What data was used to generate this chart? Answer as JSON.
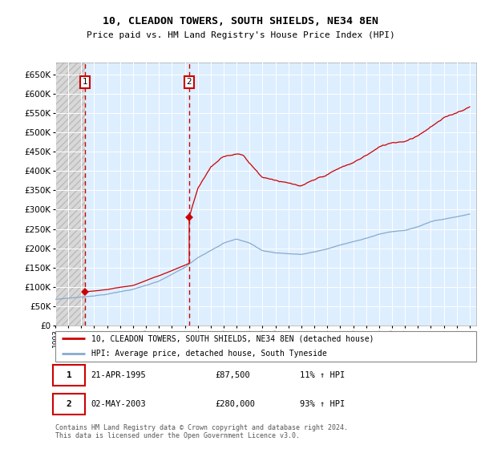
{
  "title": "10, CLEADON TOWERS, SOUTH SHIELDS, NE34 8EN",
  "subtitle": "Price paid vs. HM Land Registry's House Price Index (HPI)",
  "ytick_values": [
    0,
    50000,
    100000,
    150000,
    200000,
    250000,
    300000,
    350000,
    400000,
    450000,
    500000,
    550000,
    600000,
    650000
  ],
  "ylim": [
    0,
    680000
  ],
  "xlim_start": 1993.0,
  "xlim_end": 2025.5,
  "purchase1_x": 1995.31,
  "purchase1_y": 87500,
  "purchase2_x": 2003.34,
  "purchase2_y": 280000,
  "line_color_property": "#cc0000",
  "line_color_hpi": "#88aacc",
  "legend_label_property": "10, CLEADON TOWERS, SOUTH SHIELDS, NE34 8EN (detached house)",
  "legend_label_hpi": "HPI: Average price, detached house, South Tyneside",
  "purchase1_date": "21-APR-1995",
  "purchase1_price": "£87,500",
  "purchase1_hpi": "11% ↑ HPI",
  "purchase2_date": "02-MAY-2003",
  "purchase2_price": "£280,000",
  "purchase2_hpi": "93% ↑ HPI",
  "footnote": "Contains HM Land Registry data © Crown copyright and database right 2024.\nThis data is licensed under the Open Government Licence v3.0.",
  "xticks": [
    1993,
    1994,
    1995,
    1996,
    1997,
    1998,
    1999,
    2000,
    2001,
    2002,
    2003,
    2004,
    2005,
    2006,
    2007,
    2008,
    2009,
    2010,
    2011,
    2012,
    2013,
    2014,
    2015,
    2016,
    2017,
    2018,
    2019,
    2020,
    2021,
    2022,
    2023,
    2024,
    2025
  ],
  "bg_hatch_color": "#d0d0d0",
  "bg_blue_color": "#ddeeff",
  "grid_color": "#ffffff",
  "chart_bg": "#e8eef5"
}
